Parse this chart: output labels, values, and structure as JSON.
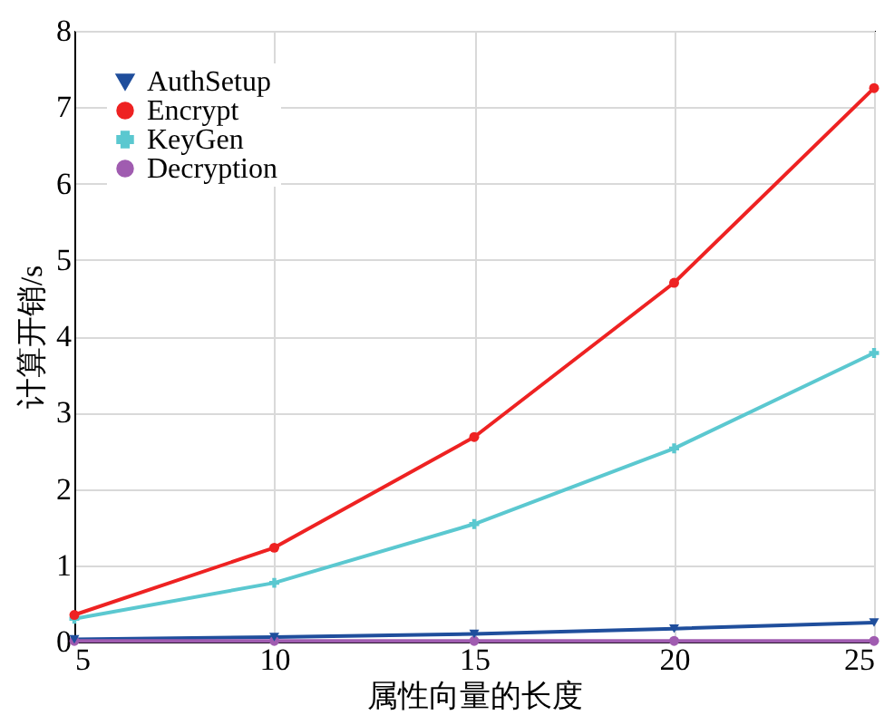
{
  "chart_data": {
    "type": "line",
    "xlabel": "属性向量的长度",
    "ylabel": "计算开销/s",
    "x": [
      5,
      10,
      15,
      20,
      25
    ],
    "series": [
      {
        "name": "AuthSetup",
        "color": "#1f4e9c",
        "marker": "triangle",
        "values": [
          0.03,
          0.06,
          0.1,
          0.17,
          0.25
        ]
      },
      {
        "name": "Encrypt",
        "color": "#ee2222",
        "marker": "circle",
        "values": [
          0.35,
          1.23,
          2.68,
          4.7,
          7.25
        ]
      },
      {
        "name": "KeyGen",
        "color": "#5bc8d0",
        "marker": "cross",
        "values": [
          0.3,
          0.77,
          1.54,
          2.53,
          3.78
        ]
      },
      {
        "name": "Decryption",
        "color": "#a05cb0",
        "marker": "circle",
        "values": [
          0.01,
          0.01,
          0.01,
          0.01,
          0.01
        ]
      }
    ],
    "xlim": [
      5,
      25
    ],
    "xticks": [
      5,
      10,
      15,
      20,
      25
    ],
    "ylim": [
      0,
      8
    ],
    "yticks": [
      0,
      1,
      2,
      3,
      4,
      5,
      6,
      7,
      8
    ],
    "grid": true,
    "legend": "top left",
    "line_style": "solid"
  }
}
